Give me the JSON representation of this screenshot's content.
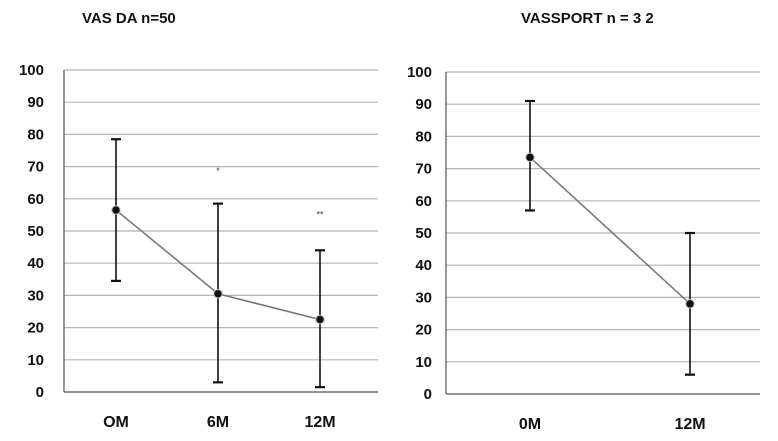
{
  "colors": {
    "grid": "#b5b5b5",
    "axis": "#555555",
    "line": "#7a7a7a",
    "marker": "#111111",
    "errorbar": "#111111"
  },
  "chart_data": [
    {
      "type": "line",
      "title": "VAS DA   n=50",
      "categories": [
        "OM",
        "6M",
        "12M"
      ],
      "series": [
        {
          "values": [
            56.5,
            30.5,
            22.5
          ],
          "error_low": [
            34.5,
            3,
            1.5
          ],
          "error_high": [
            78.5,
            58.5,
            44
          ]
        }
      ],
      "annotations": [
        {
          "category": "6M",
          "text": "*",
          "y": 69
        },
        {
          "category": "12M",
          "text": "**",
          "y": 55.5
        }
      ],
      "ylim": [
        0,
        100
      ],
      "yticks": [
        0,
        10,
        20,
        30,
        40,
        50,
        60,
        70,
        80,
        90,
        100
      ],
      "grid": true,
      "xlabel": "",
      "ylabel": ""
    },
    {
      "type": "line",
      "title": "VASSPORT  n = 3 2",
      "categories": [
        "0M",
        "12M"
      ],
      "series": [
        {
          "values": [
            73.5,
            28
          ],
          "error_low": [
            57,
            6
          ],
          "error_high": [
            91,
            50
          ]
        }
      ],
      "annotations": [],
      "ylim": [
        0,
        100
      ],
      "yticks": [
        0,
        10,
        20,
        30,
        40,
        50,
        60,
        70,
        80,
        90,
        100
      ],
      "grid": true,
      "xlabel": "",
      "ylabel": ""
    }
  ]
}
